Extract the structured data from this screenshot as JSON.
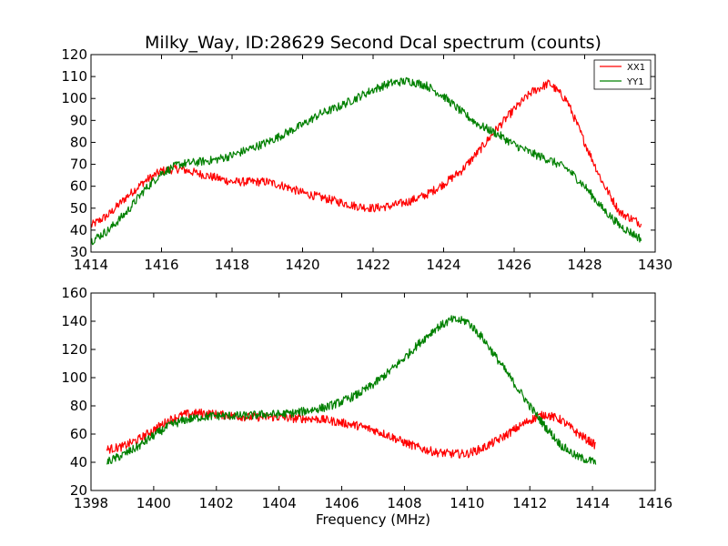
{
  "chart_data": [
    {
      "type": "line",
      "title": "Milky_Way, ID:28629 Second Dcal spectrum (counts)",
      "xlabel": "",
      "ylabel": "",
      "xlim": [
        1414,
        1430
      ],
      "ylim": [
        30,
        120
      ],
      "xticks": [
        "1414",
        "1416",
        "1418",
        "1420",
        "1422",
        "1424",
        "1426",
        "1428",
        "1430"
      ],
      "yticks": [
        "30",
        "40",
        "50",
        "60",
        "70",
        "80",
        "90",
        "100",
        "110",
        "120"
      ],
      "legend": "top-right",
      "series": [
        {
          "name": "XX1",
          "color": "#ff0000",
          "x": [
            1414.0,
            1414.5,
            1415.0,
            1415.5,
            1416.0,
            1416.5,
            1417.0,
            1417.5,
            1418.0,
            1418.5,
            1419.0,
            1419.5,
            1420.0,
            1420.5,
            1421.0,
            1421.5,
            1422.0,
            1422.5,
            1423.0,
            1423.5,
            1424.0,
            1424.5,
            1425.0,
            1425.5,
            1426.0,
            1426.5,
            1427.0,
            1427.5,
            1428.0,
            1428.5,
            1429.0,
            1429.6
          ],
          "values": [
            42,
            47,
            55,
            62,
            67,
            68,
            66,
            64,
            62,
            62,
            62,
            60,
            57,
            55,
            53,
            51,
            50,
            51,
            53,
            56,
            61,
            67,
            76,
            86,
            95,
            103,
            107,
            99,
            80,
            62,
            48,
            43
          ]
        },
        {
          "name": "YY1",
          "color": "#008000",
          "x": [
            1414.0,
            1414.5,
            1415.0,
            1415.5,
            1416.0,
            1416.5,
            1417.0,
            1417.5,
            1418.0,
            1418.5,
            1419.0,
            1419.5,
            1420.0,
            1420.5,
            1421.0,
            1421.5,
            1422.0,
            1422.5,
            1423.0,
            1423.5,
            1424.0,
            1424.5,
            1425.0,
            1425.5,
            1426.0,
            1426.5,
            1427.0,
            1427.5,
            1428.0,
            1428.5,
            1429.0,
            1429.6
          ],
          "values": [
            35,
            40,
            48,
            58,
            66,
            70,
            71,
            72,
            74,
            77,
            80,
            84,
            88,
            93,
            96,
            100,
            104,
            107,
            108,
            106,
            101,
            94,
            88,
            84,
            79,
            75,
            72,
            68,
            60,
            50,
            42,
            36
          ]
        }
      ]
    },
    {
      "type": "line",
      "title": "",
      "xlabel": "Frequency (MHz)",
      "ylabel": "",
      "xlim": [
        1398,
        1416
      ],
      "ylim": [
        20,
        160
      ],
      "xticks": [
        "1398",
        "1400",
        "1402",
        "1404",
        "1406",
        "1408",
        "1410",
        "1412",
        "1414",
        "1416"
      ],
      "yticks": [
        "20",
        "40",
        "60",
        "80",
        "100",
        "120",
        "140",
        "160"
      ],
      "series": [
        {
          "color": "#ff0000",
          "x": [
            1398.5,
            1399.0,
            1399.5,
            1400.0,
            1400.5,
            1401.0,
            1401.5,
            1402.0,
            1402.5,
            1403.0,
            1403.5,
            1404.0,
            1404.5,
            1405.0,
            1405.5,
            1406.0,
            1406.5,
            1407.0,
            1407.5,
            1408.0,
            1408.5,
            1409.0,
            1409.5,
            1410.0,
            1410.5,
            1411.0,
            1411.5,
            1412.0,
            1412.5,
            1413.0,
            1413.5,
            1414.1
          ],
          "values": [
            49,
            51,
            56,
            63,
            70,
            74,
            75,
            74,
            73,
            72,
            72,
            72,
            71,
            71,
            70,
            68,
            66,
            63,
            59,
            54,
            50,
            47,
            46,
            46,
            50,
            56,
            63,
            70,
            74,
            70,
            61,
            52
          ]
        },
        {
          "color": "#008000",
          "x": [
            1398.5,
            1399.0,
            1399.5,
            1400.0,
            1400.5,
            1401.0,
            1401.5,
            1402.0,
            1402.5,
            1403.0,
            1403.5,
            1404.0,
            1404.5,
            1405.0,
            1405.5,
            1406.0,
            1406.5,
            1407.0,
            1407.5,
            1408.0,
            1408.5,
            1409.0,
            1409.5,
            1410.0,
            1410.5,
            1411.0,
            1411.5,
            1412.0,
            1412.5,
            1413.0,
            1413.5,
            1414.1
          ],
          "values": [
            40,
            45,
            51,
            59,
            66,
            70,
            72,
            73,
            73,
            73,
            74,
            74,
            75,
            77,
            79,
            83,
            88,
            95,
            104,
            114,
            125,
            135,
            141,
            140,
            128,
            112,
            96,
            80,
            65,
            52,
            44,
            40
          ]
        }
      ]
    }
  ]
}
